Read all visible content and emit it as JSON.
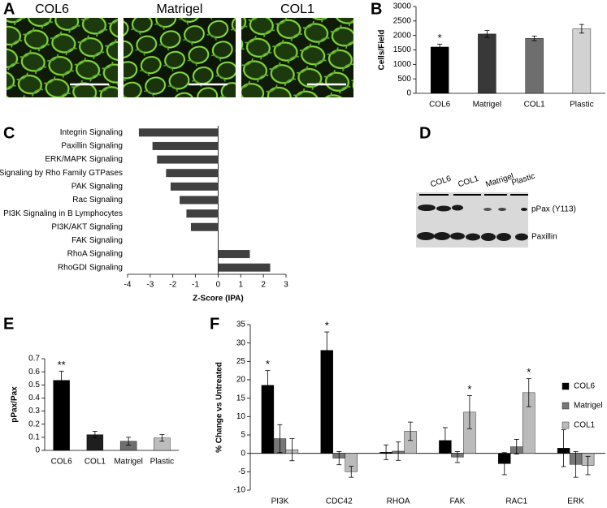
{
  "panel_letters": [
    "A",
    "B",
    "C",
    "D",
    "E",
    "F"
  ],
  "micrographs": {
    "labels": [
      "COL6",
      "Matrigel",
      "COL1"
    ]
  },
  "western_blot": {
    "lanes": [
      "COL6",
      "COL1",
      "Matrigel",
      "Plastic"
    ],
    "rows": [
      "pPax (Y113)",
      "Paxillin"
    ]
  },
  "chart_data": [
    {
      "type": "bar",
      "ylabel": "Cells/Field",
      "categories": [
        "COL6",
        "Matrigel",
        "COL1",
        "Plastic"
      ],
      "values": [
        1600,
        2050,
        1900,
        2230
      ],
      "errors": [
        100,
        120,
        80,
        150
      ],
      "colors": [
        "#000000",
        "#383838",
        "#6e6e6e",
        "#d2d2d2"
      ],
      "significance": [
        "*",
        null,
        null,
        null
      ],
      "ylim": [
        0,
        3000
      ],
      "yticks": [
        0,
        500,
        1000,
        1500,
        2000,
        2500,
        3000
      ]
    },
    {
      "type": "barh",
      "xlabel": "Z-Score (IPA)",
      "categories": [
        "Integrin Signaling",
        "Paxillin Signaling",
        "ERK/MAPK Signaling",
        "Signaling by Rho Family GTPases",
        "PAK Signaling",
        "Rac Signaling",
        "PI3K Signaling in B Lymphocytes",
        "PI3K/AKT Signaling",
        "FAK Signaling",
        "RhoA Signaling",
        "RhoGDI Signaling"
      ],
      "values": [
        -3.5,
        -2.9,
        -2.7,
        -2.3,
        -2.1,
        -1.7,
        -1.4,
        -1.2,
        0,
        1.4,
        2.3
      ],
      "color": "#404040",
      "xlim": [
        -4,
        3
      ],
      "xticks": [
        -4,
        -3,
        -2,
        -1,
        0,
        1,
        2,
        3
      ]
    },
    {
      "type": "bar",
      "ylabel": "pPax/Pax",
      "categories": [
        "COL6",
        "COL1",
        "Matrigel",
        "Plastic"
      ],
      "values": [
        0.535,
        0.12,
        0.07,
        0.095
      ],
      "errors": [
        0.07,
        0.025,
        0.03,
        0.025
      ],
      "colors": [
        "#000000",
        "#1e1e1e",
        "#6e6e6e",
        "#bdbdbd"
      ],
      "significance": [
        "**",
        null,
        null,
        null
      ],
      "ylim": [
        0,
        0.7
      ],
      "yticks": [
        0,
        0.1,
        0.2,
        0.3,
        0.4,
        0.5,
        0.6,
        0.7
      ]
    },
    {
      "type": "bar",
      "ylabel": "% Change vs  Untreated",
      "categories": [
        "PI3K",
        "CDC42",
        "RHOA",
        "FAK",
        "RAC1",
        "ERK"
      ],
      "series": [
        {
          "name": "COL6",
          "color": "#000000",
          "values": [
            18.5,
            28,
            0.3,
            3.5,
            -2.8,
            1.4
          ],
          "errors": [
            4,
            5,
            2,
            3.5,
            3,
            5
          ],
          "significance": [
            "*",
            "*",
            null,
            null,
            null,
            null
          ]
        },
        {
          "name": "Matrigel",
          "color": "#777777",
          "values": [
            4,
            -1.3,
            0.6,
            -1,
            1.8,
            -3
          ],
          "errors": [
            3.8,
            1.8,
            2.5,
            1.5,
            2,
            3.5
          ],
          "significance": [
            null,
            null,
            null,
            null,
            null,
            null
          ]
        },
        {
          "name": "COL1",
          "color": "#bbbbbb",
          "values": [
            1,
            -5,
            6,
            11.2,
            16.5,
            -3.3
          ],
          "errors": [
            3,
            1.5,
            2.5,
            4.5,
            3.8,
            2.5
          ],
          "significance": [
            null,
            null,
            null,
            "*",
            "*",
            null
          ]
        }
      ],
      "ylim": [
        -10,
        35
      ],
      "yticks": [
        -10,
        -5,
        0,
        5,
        10,
        15,
        20,
        25,
        30,
        35
      ]
    }
  ]
}
